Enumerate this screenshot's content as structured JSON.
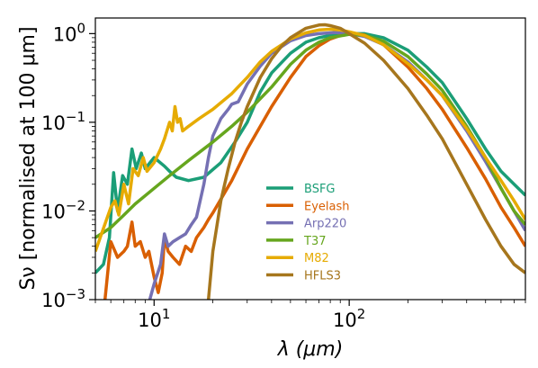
{
  "chart_data": {
    "type": "line",
    "title": "",
    "xlabel": "λ (μm)",
    "ylabel": "Sν [normalised at 100 μm]",
    "xscale": "log",
    "yscale": "log",
    "xlim": [
      5,
      800
    ],
    "ylim": [
      0.001,
      1.5
    ],
    "grid": false,
    "legend_position": "lower-center",
    "x_ticks": [
      {
        "value": 10,
        "base": "10",
        "exp": "1"
      },
      {
        "value": 100,
        "base": "10",
        "exp": "2"
      }
    ],
    "y_ticks": [
      {
        "value": 0.001,
        "base": "10",
        "exp": "−3"
      },
      {
        "value": 0.01,
        "base": "10",
        "exp": "−2"
      },
      {
        "value": 0.1,
        "base": "10",
        "exp": "−1"
      },
      {
        "value": 1,
        "base": "10",
        "exp": "0"
      }
    ],
    "series": [
      {
        "name": "BSFG",
        "color": "#1b9e77",
        "points": [
          [
            5,
            0.002
          ],
          [
            5.5,
            0.0025
          ],
          [
            5.9,
            0.005
          ],
          [
            6.2,
            0.027
          ],
          [
            6.5,
            0.01
          ],
          [
            6.9,
            0.025
          ],
          [
            7.3,
            0.02
          ],
          [
            7.7,
            0.05
          ],
          [
            8.1,
            0.03
          ],
          [
            8.6,
            0.045
          ],
          [
            9,
            0.03
          ],
          [
            10,
            0.04
          ],
          [
            11.3,
            0.032
          ],
          [
            12,
            0.028
          ],
          [
            13,
            0.024
          ],
          [
            15,
            0.022
          ],
          [
            18,
            0.024
          ],
          [
            22,
            0.035
          ],
          [
            26,
            0.06
          ],
          [
            30,
            0.1
          ],
          [
            35,
            0.22
          ],
          [
            40,
            0.36
          ],
          [
            50,
            0.6
          ],
          [
            60,
            0.8
          ],
          [
            70,
            0.9
          ],
          [
            85,
            0.98
          ],
          [
            100,
            1.0
          ],
          [
            120,
            1.0
          ],
          [
            150,
            0.9
          ],
          [
            200,
            0.65
          ],
          [
            250,
            0.42
          ],
          [
            300,
            0.28
          ],
          [
            400,
            0.11
          ],
          [
            500,
            0.05
          ],
          [
            600,
            0.028
          ],
          [
            700,
            0.02
          ],
          [
            800,
            0.015
          ]
        ]
      },
      {
        "name": "Eyelash",
        "color": "#d95f02",
        "points": [
          [
            5.6,
            0.001
          ],
          [
            6,
            0.0045
          ],
          [
            6.5,
            0.003
          ],
          [
            7,
            0.0035
          ],
          [
            7.3,
            0.004
          ],
          [
            7.7,
            0.0075
          ],
          [
            8,
            0.004
          ],
          [
            8.5,
            0.0045
          ],
          [
            9,
            0.003
          ],
          [
            9.4,
            0.0035
          ],
          [
            10,
            0.0018
          ],
          [
            10.5,
            0.0012
          ],
          [
            11,
            0.002
          ],
          [
            11.3,
            0.005
          ],
          [
            11.8,
            0.0035
          ],
          [
            12.5,
            0.003
          ],
          [
            13.5,
            0.0025
          ],
          [
            14.5,
            0.004
          ],
          [
            15.5,
            0.0035
          ],
          [
            16.5,
            0.005
          ],
          [
            18,
            0.0065
          ],
          [
            19,
            0.008
          ],
          [
            20,
            0.0095
          ],
          [
            25,
            0.022
          ],
          [
            30,
            0.05
          ],
          [
            40,
            0.15
          ],
          [
            50,
            0.32
          ],
          [
            60,
            0.55
          ],
          [
            70,
            0.73
          ],
          [
            80,
            0.87
          ],
          [
            90,
            0.95
          ],
          [
            100,
            1.0
          ],
          [
            120,
            0.97
          ],
          [
            150,
            0.75
          ],
          [
            200,
            0.42
          ],
          [
            250,
            0.24
          ],
          [
            300,
            0.14
          ],
          [
            400,
            0.052
          ],
          [
            500,
            0.023
          ],
          [
            600,
            0.011
          ],
          [
            700,
            0.0065
          ],
          [
            800,
            0.004
          ]
        ]
      },
      {
        "name": "Arp220",
        "color": "#7570b3",
        "points": [
          [
            9.5,
            0.001
          ],
          [
            10,
            0.0015
          ],
          [
            10.8,
            0.0025
          ],
          [
            11.3,
            0.0055
          ],
          [
            11.8,
            0.004
          ],
          [
            12.5,
            0.0045
          ],
          [
            13.5,
            0.005
          ],
          [
            14.5,
            0.0055
          ],
          [
            15.5,
            0.007
          ],
          [
            16.5,
            0.0085
          ],
          [
            18,
            0.02
          ],
          [
            19,
            0.04
          ],
          [
            20,
            0.07
          ],
          [
            22,
            0.11
          ],
          [
            24,
            0.14
          ],
          [
            25,
            0.16
          ],
          [
            27,
            0.17
          ],
          [
            30,
            0.27
          ],
          [
            35,
            0.43
          ],
          [
            40,
            0.6
          ],
          [
            50,
            0.83
          ],
          [
            60,
            0.95
          ],
          [
            70,
            1.0
          ],
          [
            85,
            1.03
          ],
          [
            100,
            1.0
          ],
          [
            120,
            0.93
          ],
          [
            150,
            0.75
          ],
          [
            200,
            0.48
          ],
          [
            250,
            0.3
          ],
          [
            300,
            0.2
          ],
          [
            400,
            0.08
          ],
          [
            500,
            0.036
          ],
          [
            600,
            0.018
          ],
          [
            700,
            0.01
          ],
          [
            800,
            0.006
          ]
        ]
      },
      {
        "name": "T37",
        "color": "#66a61e",
        "points": [
          [
            5,
            0.005
          ],
          [
            6,
            0.0065
          ],
          [
            7,
            0.009
          ],
          [
            8,
            0.012
          ],
          [
            10,
            0.018
          ],
          [
            12,
            0.025
          ],
          [
            15,
            0.037
          ],
          [
            20,
            0.06
          ],
          [
            25,
            0.09
          ],
          [
            30,
            0.13
          ],
          [
            40,
            0.25
          ],
          [
            50,
            0.45
          ],
          [
            60,
            0.65
          ],
          [
            70,
            0.8
          ],
          [
            80,
            0.9
          ],
          [
            100,
            0.98
          ],
          [
            120,
            0.96
          ],
          [
            150,
            0.82
          ],
          [
            200,
            0.55
          ],
          [
            250,
            0.35
          ],
          [
            300,
            0.23
          ],
          [
            400,
            0.09
          ],
          [
            500,
            0.04
          ],
          [
            600,
            0.018
          ],
          [
            700,
            0.01
          ],
          [
            800,
            0.007
          ]
        ]
      },
      {
        "name": "M82",
        "color": "#e6ab02",
        "points": [
          [
            5,
            0.0035
          ],
          [
            6,
            0.011
          ],
          [
            6.3,
            0.013
          ],
          [
            6.6,
            0.009
          ],
          [
            7,
            0.02
          ],
          [
            7.4,
            0.012
          ],
          [
            7.8,
            0.03
          ],
          [
            8.3,
            0.025
          ],
          [
            8.8,
            0.04
          ],
          [
            9.2,
            0.028
          ],
          [
            10,
            0.035
          ],
          [
            10.8,
            0.05
          ],
          [
            11.3,
            0.065
          ],
          [
            12,
            0.1
          ],
          [
            12.4,
            0.08
          ],
          [
            12.8,
            0.15
          ],
          [
            13.2,
            0.1
          ],
          [
            13.6,
            0.11
          ],
          [
            14,
            0.08
          ],
          [
            15,
            0.09
          ],
          [
            17,
            0.11
          ],
          [
            20,
            0.14
          ],
          [
            25,
            0.21
          ],
          [
            30,
            0.32
          ],
          [
            35,
            0.48
          ],
          [
            40,
            0.63
          ],
          [
            50,
            0.87
          ],
          [
            60,
            1.02
          ],
          [
            70,
            1.1
          ],
          [
            80,
            1.12
          ],
          [
            90,
            1.1
          ],
          [
            100,
            1.05
          ],
          [
            120,
            0.95
          ],
          [
            150,
            0.75
          ],
          [
            200,
            0.46
          ],
          [
            250,
            0.3
          ],
          [
            300,
            0.2
          ],
          [
            400,
            0.085
          ],
          [
            500,
            0.04
          ],
          [
            600,
            0.022
          ],
          [
            700,
            0.013
          ],
          [
            800,
            0.008
          ]
        ]
      },
      {
        "name": "HFLS3",
        "color": "#a6761d",
        "points": [
          [
            19,
            0.001
          ],
          [
            20,
            0.0035
          ],
          [
            22,
            0.013
          ],
          [
            24,
            0.03
          ],
          [
            26,
            0.06
          ],
          [
            28,
            0.1
          ],
          [
            30,
            0.15
          ],
          [
            35,
            0.32
          ],
          [
            40,
            0.52
          ],
          [
            45,
            0.72
          ],
          [
            50,
            0.9
          ],
          [
            60,
            1.15
          ],
          [
            70,
            1.25
          ],
          [
            75,
            1.26
          ],
          [
            80,
            1.23
          ],
          [
            90,
            1.15
          ],
          [
            100,
            1.0
          ],
          [
            120,
            0.78
          ],
          [
            150,
            0.5
          ],
          [
            200,
            0.24
          ],
          [
            250,
            0.12
          ],
          [
            300,
            0.065
          ],
          [
            400,
            0.02
          ],
          [
            500,
            0.008
          ],
          [
            600,
            0.004
          ],
          [
            700,
            0.0025
          ],
          [
            800,
            0.002
          ]
        ]
      }
    ]
  }
}
